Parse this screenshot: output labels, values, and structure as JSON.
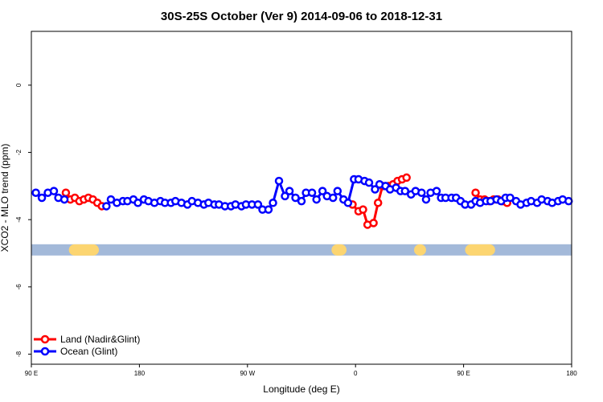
{
  "chart_data": {
    "type": "line",
    "title": "30S-25S October (Ver 9)   2014-09-06 to 2018-12-31",
    "xlabel": "Longitude (deg E)",
    "ylabel": "XCO2 - MLO trend (ppm)",
    "xlim": [
      90,
      450
    ],
    "ylim": [
      -8.3,
      1.6
    ],
    "x_ticks": [
      {
        "value": 90,
        "label": "90 E"
      },
      {
        "value": 180,
        "label": "180"
      },
      {
        "value": 270,
        "label": "90 W"
      },
      {
        "value": 360,
        "label": "0"
      },
      {
        "value": 450,
        "label": "90 E"
      },
      {
        "value": 540,
        "label": "180"
      }
    ],
    "y_ticks": [
      {
        "value": 0,
        "label": "0"
      },
      {
        "value": -2,
        "label": "-2"
      },
      {
        "value": -4,
        "label": "-4"
      },
      {
        "value": -6,
        "label": "-6"
      },
      {
        "value": -8,
        "label": "-8"
      }
    ],
    "x_ticks_range": [
      90,
      540
    ],
    "grid": false,
    "legend_position": "bottom-left",
    "land_band": {
      "y": -4.9,
      "ocean_color": "#a3b9d9",
      "land_color": "#fcd571",
      "land_segments": [
        [
          115,
          135
        ],
        [
          290,
          300
        ],
        [
          345,
          353
        ],
        [
          379,
          399
        ]
      ]
    },
    "series": [
      {
        "name": "Land (Nadir&Glint)",
        "color": "#ff0000",
        "x": [
          113,
          116,
          119,
          122,
          125,
          128,
          131,
          134,
          137,
          304,
          308,
          311,
          314,
          318,
          321,
          324,
          328,
          331,
          334,
          337,
          340,
          386,
          389,
          392,
          395,
          398,
          401,
          404,
          407
        ],
        "y": [
          -3.2,
          -3.4,
          -3.35,
          -3.45,
          -3.4,
          -3.35,
          -3.4,
          -3.5,
          -3.6,
          -3.55,
          -3.75,
          -3.7,
          -4.15,
          -4.1,
          -3.5,
          -3.0,
          -3.0,
          -2.95,
          -2.85,
          -2.8,
          -2.75,
          -3.2,
          -3.4,
          -3.4,
          -3.45,
          -3.4,
          -3.4,
          -3.45,
          -3.5
        ]
      },
      {
        "name": "Ocean (Glint)",
        "color": "#0000ff",
        "x": [
          93,
          97,
          101,
          105,
          108,
          112,
          140,
          143,
          147,
          151,
          154,
          158,
          161,
          165,
          168,
          172,
          176,
          179,
          183,
          186,
          190,
          194,
          197,
          201,
          205,
          208,
          212,
          215,
          219,
          223,
          226,
          230,
          233,
          237,
          241,
          244,
          248,
          251,
          255,
          259,
          262,
          266,
          270,
          273,
          277,
          280,
          284,
          287,
          291,
          294,
          298,
          301,
          305,
          308,
          312,
          315,
          319,
          322,
          326,
          329,
          333,
          336,
          339,
          343,
          346,
          350,
          353,
          356,
          360,
          363,
          366,
          370,
          373,
          376,
          379,
          383,
          386,
          389,
          393,
          396,
          400,
          403,
          406,
          409,
          413,
          416,
          420,
          423,
          427,
          430,
          434,
          437,
          441,
          444,
          448
        ],
        "y": [
          -3.2,
          -3.35,
          -3.2,
          -3.15,
          -3.35,
          -3.4,
          -3.6,
          -3.4,
          -3.5,
          -3.45,
          -3.45,
          -3.4,
          -3.5,
          -3.4,
          -3.45,
          -3.5,
          -3.45,
          -3.5,
          -3.5,
          -3.45,
          -3.5,
          -3.55,
          -3.45,
          -3.5,
          -3.55,
          -3.5,
          -3.55,
          -3.55,
          -3.6,
          -3.6,
          -3.55,
          -3.6,
          -3.55,
          -3.55,
          -3.55,
          -3.7,
          -3.7,
          -3.5,
          -2.85,
          -3.3,
          -3.15,
          -3.35,
          -3.45,
          -3.2,
          -3.2,
          -3.4,
          -3.15,
          -3.3,
          -3.35,
          -3.15,
          -3.4,
          -3.5,
          -2.8,
          -2.8,
          -2.85,
          -2.9,
          -3.1,
          -2.95,
          -3.0,
          -3.1,
          -3.05,
          -3.15,
          -3.15,
          -3.25,
          -3.15,
          -3.2,
          -3.4,
          -3.2,
          -3.15,
          -3.35,
          -3.35,
          -3.35,
          -3.35,
          -3.45,
          -3.55,
          -3.55,
          -3.45,
          -3.5,
          -3.45,
          -3.45,
          -3.4,
          -3.45,
          -3.35,
          -3.35,
          -3.45,
          -3.55,
          -3.5,
          -3.45,
          -3.5,
          -3.4,
          -3.45,
          -3.5,
          -3.45,
          -3.4,
          -3.45
        ]
      }
    ]
  }
}
